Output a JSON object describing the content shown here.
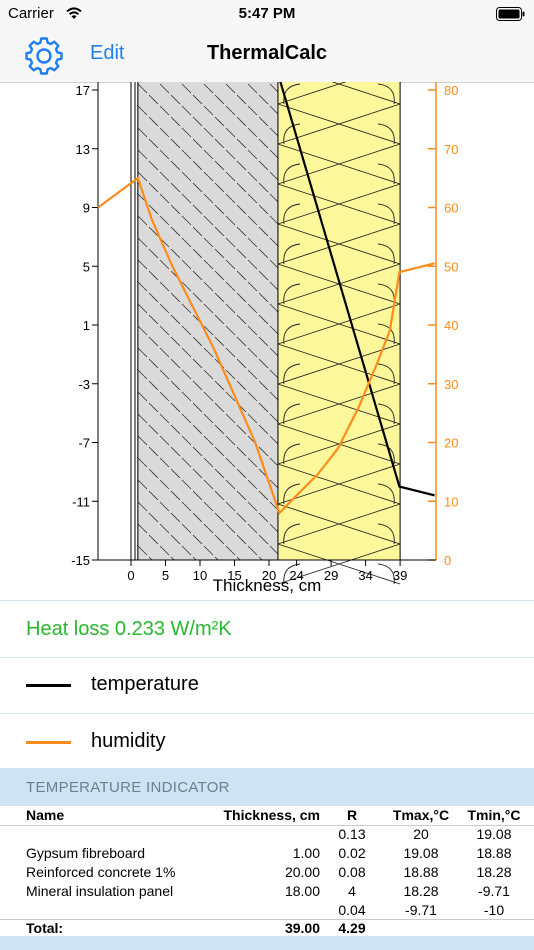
{
  "status_bar": {
    "carrier": "Carrier",
    "time": "5:47 PM"
  },
  "nav": {
    "edit_label": "Edit",
    "title": "ThermalCalc"
  },
  "chart_data": {
    "type": "line",
    "xlabel": "Thickness, cm",
    "x_ticks": [
      "0",
      "5",
      "10",
      "15",
      "20",
      "24",
      "29",
      "34",
      "39"
    ],
    "y_left_ticks": [
      "17",
      "13",
      "9",
      "5",
      "1",
      "-3",
      "-7",
      "-11",
      "-15"
    ],
    "y_right_ticks": [
      "80",
      "70",
      "60",
      "50",
      "40",
      "30",
      "20",
      "10",
      "0"
    ],
    "ylim_left": [
      -15,
      18.5
    ],
    "ylim_right": [
      0,
      82
    ],
    "layers": [
      {
        "name": "Gypsum fibreboard",
        "from": 0,
        "to": 1,
        "pattern": "plain"
      },
      {
        "name": "Reinforced concrete 1%",
        "from": 1,
        "to": 21,
        "pattern": "hatch",
        "color": "#d9d9d9"
      },
      {
        "name": "Mineral insulation panel",
        "from": 21,
        "to": 39,
        "pattern": "insulation",
        "color": "#fcf79a"
      }
    ],
    "series": [
      {
        "name": "temperature",
        "axis": "left",
        "color": "#000000",
        "points": [
          [
            21.5,
            17.8
          ],
          [
            38.9,
            -10.0
          ],
          [
            44,
            -10.6
          ]
        ]
      },
      {
        "name": "humidity",
        "axis": "right",
        "color": "#ff8c1a",
        "points": [
          [
            -5,
            60
          ],
          [
            1,
            65
          ],
          [
            3,
            58
          ],
          [
            6,
            50
          ],
          [
            9,
            43
          ],
          [
            12,
            36
          ],
          [
            15,
            28
          ],
          [
            18,
            20
          ],
          [
            21.5,
            8
          ],
          [
            24,
            11
          ],
          [
            27,
            14.5
          ],
          [
            30,
            19
          ],
          [
            33,
            26
          ],
          [
            35.5,
            33
          ],
          [
            37.5,
            39
          ],
          [
            38.9,
            49
          ],
          [
            44,
            50.5
          ]
        ]
      }
    ]
  },
  "heat_loss": "Heat loss 0.233 W/m²K",
  "legend": {
    "temperature": "temperature",
    "humidity": "humidity"
  },
  "section_title": "TEMPERATURE INDICATOR",
  "table": {
    "headers": {
      "name": "Name",
      "thickness": "Thickness, cm",
      "r": "R",
      "tmax": "Tmax,°C",
      "tmin": "Tmin,°C"
    },
    "rows": [
      {
        "name": "",
        "thickness": "",
        "r": "0.13",
        "tmax": "20",
        "tmin": "19.08"
      },
      {
        "name": "Gypsum fibreboard",
        "thickness": "1.00",
        "r": "0.02",
        "tmax": "19.08",
        "tmin": "18.88"
      },
      {
        "name": "Reinforced concrete 1%",
        "thickness": "20.00",
        "r": "0.08",
        "tmax": "18.88",
        "tmin": "18.28"
      },
      {
        "name": "Mineral insulation panel",
        "thickness": "18.00",
        "r": "4",
        "tmax": "18.28",
        "tmin": "-9.71"
      },
      {
        "name": "",
        "thickness": "",
        "r": "0.04",
        "tmax": "-9.71",
        "tmin": "-10"
      }
    ],
    "total": {
      "name": "Total:",
      "thickness": "39.00",
      "r": "4.29"
    }
  }
}
